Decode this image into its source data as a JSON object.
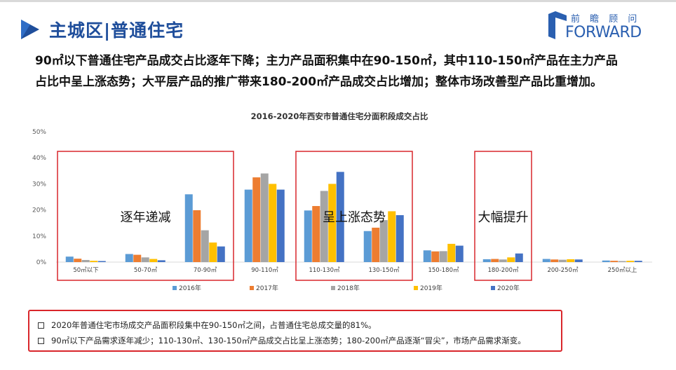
{
  "header": {
    "title": "主城区|普通住宅",
    "logo_cn": "前 瞻 顾 问",
    "logo_en": "FORWARD",
    "accent": "#1f4e9b"
  },
  "headline": {
    "line1": "90㎡以下普通住宅产品成交占比逐年下降；主力产品面积集中在90-150㎡，其中110-150㎡产品在主力产品",
    "line2": "占比中呈上涨态势；大平层产品的推广带来180-200㎡产品成交占比增加；整体市场改善型产品比重增加。"
  },
  "chart_data": {
    "type": "bar",
    "title": "2016-2020年西安市普通住宅分面积段成交占比",
    "categories": [
      "50㎡以下",
      "50-70㎡",
      "70-90㎡",
      "90-110㎡",
      "110-130㎡",
      "130-150㎡",
      "150-180㎡",
      "180-200㎡",
      "200-250㎡",
      "250㎡以上"
    ],
    "series": [
      {
        "name": "2016年",
        "color": "#5b9bd5",
        "values": [
          2.1,
          3.1,
          26.0,
          27.8,
          19.8,
          11.9,
          4.5,
          1.1,
          1.2,
          0.6
        ]
      },
      {
        "name": "2017年",
        "color": "#ed7d31",
        "values": [
          1.3,
          2.8,
          19.9,
          32.5,
          21.5,
          13.2,
          4.1,
          1.2,
          1.0,
          0.5
        ]
      },
      {
        "name": "2018年",
        "color": "#a5a5a5",
        "values": [
          0.8,
          1.8,
          12.2,
          34.0,
          27.3,
          16.1,
          4.2,
          1.0,
          0.9,
          0.4
        ]
      },
      {
        "name": "2019年",
        "color": "#ffc000",
        "values": [
          0.5,
          1.2,
          7.5,
          30.0,
          30.0,
          19.5,
          7.0,
          1.8,
          1.1,
          0.5
        ]
      },
      {
        "name": "2020年",
        "color": "#4472c4",
        "values": [
          0.4,
          0.7,
          6.0,
          27.8,
          34.6,
          18.0,
          6.3,
          3.3,
          1.0,
          0.5
        ]
      }
    ],
    "ylim": [
      0,
      50
    ],
    "yticks": [
      "0%",
      "10%",
      "20%",
      "30%",
      "40%",
      "50%"
    ],
    "legend_position": "bottom",
    "grid": false,
    "annotations": [
      {
        "text": "逐年递减",
        "categories": [
          0,
          2
        ]
      },
      {
        "text": "呈上涨态势",
        "categories": [
          4,
          5
        ]
      },
      {
        "text": "大幅提升",
        "categories": [
          7,
          7
        ]
      }
    ],
    "highlight_color": "#d9262b"
  },
  "notes": [
    "2020年普通住宅市场成交产品面积段集中在90-150㎡之间，占普通住宅总成交量的81%。",
    "90㎡以下产品需求逐年减少；110-130㎡、130-150㎡产品成交占比呈上涨态势；180-200㎡产品逐渐“冒尖”，市场产品需求渐变。"
  ]
}
